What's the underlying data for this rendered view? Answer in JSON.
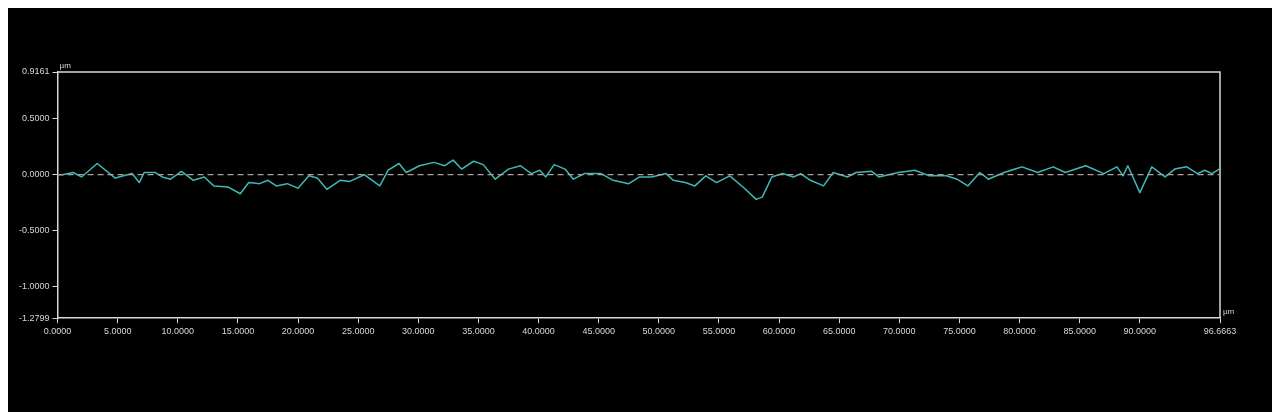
{
  "chart_data": {
    "type": "line",
    "xlabel": "µm",
    "ylabel": "µm",
    "xlim": [
      0,
      96.6663
    ],
    "ylim": [
      -1.2799,
      0.9161
    ],
    "xticks": [
      {
        "value": 0,
        "label": "0.0000"
      },
      {
        "value": 5,
        "label": "5.0000"
      },
      {
        "value": 10,
        "label": "10.0000"
      },
      {
        "value": 15,
        "label": "15.0000"
      },
      {
        "value": 20,
        "label": "20.0000"
      },
      {
        "value": 25,
        "label": "25.0000"
      },
      {
        "value": 30,
        "label": "30.0000"
      },
      {
        "value": 35,
        "label": "35.0000"
      },
      {
        "value": 40,
        "label": "40.0000"
      },
      {
        "value": 45,
        "label": "45.0000"
      },
      {
        "value": 50,
        "label": "50.0000"
      },
      {
        "value": 55,
        "label": "55.0000"
      },
      {
        "value": 60,
        "label": "60.0000"
      },
      {
        "value": 65,
        "label": "65.0000"
      },
      {
        "value": 70,
        "label": "70.0000"
      },
      {
        "value": 75,
        "label": "75.0000"
      },
      {
        "value": 80,
        "label": "80.0000"
      },
      {
        "value": 85,
        "label": "85.0000"
      },
      {
        "value": 90,
        "label": "90.0000"
      },
      {
        "value": 96.6663,
        "label": "96.6663"
      }
    ],
    "yticks": [
      {
        "value": -1.2799,
        "label": "-1.2799"
      },
      {
        "value": -1,
        "label": "-1.0000"
      },
      {
        "value": -0.5,
        "label": "-0.5000"
      },
      {
        "value": 0,
        "label": "0.0000"
      },
      {
        "value": 0.5,
        "label": "0.5000"
      },
      {
        "value": 0.9161,
        "label": "0.9161"
      }
    ],
    "grid": false,
    "legend": false,
    "marker": "none",
    "line_style": "solid",
    "ref_lines": [
      {
        "axis": "y",
        "value": 0,
        "label": null,
        "color": "#a8a0a0",
        "line_style": "dashed"
      }
    ],
    "x": [
      0,
      0.4,
      1.3,
      2.0,
      3.3,
      4.8,
      6.2,
      6.8,
      7.2,
      8.1,
      8.7,
      9.4,
      10.3,
      11.3,
      12.2,
      13.0,
      14.2,
      15.2,
      15.9,
      16.8,
      17.5,
      18.2,
      19.1,
      20.0,
      20.9,
      21.6,
      22.4,
      23.5,
      24.3,
      25.5,
      26.8,
      27.5,
      28.4,
      29.0,
      30.1,
      31.3,
      32.2,
      32.9,
      33.6,
      34.6,
      35.4,
      36.4,
      37.5,
      38.5,
      39.4,
      40.1,
      40.6,
      41.3,
      42.2,
      42.9,
      43.8,
      45.2,
      46.2,
      47.5,
      48.4,
      49.4,
      50.6,
      51.2,
      52.2,
      53.0,
      53.9,
      54.8,
      55.9,
      57.0,
      58.1,
      58.6,
      59.4,
      60.3,
      61.2,
      61.8,
      62.6,
      63.7,
      64.5,
      65.7,
      66.4,
      67.7,
      68.3,
      69.9,
      71.3,
      72.5,
      73.9,
      74.8,
      75.7,
      76.7,
      77.4,
      78.7,
      80.2,
      81.5,
      82.8,
      83.8,
      85.5,
      87.0,
      88.1,
      88.6,
      89.0,
      90.0,
      91.0,
      92.1,
      92.9,
      93.9,
      94.8,
      95.4,
      96.0,
      96.6
    ],
    "series": [
      {
        "color": "#3fb8b8",
        "values": [
          0,
          0,
          0.02,
          -0.02,
          0.1,
          -0.03,
          0.01,
          -0.07,
          0.02,
          0.02,
          -0.02,
          -0.04,
          0.03,
          -0.05,
          -0.02,
          -0.1,
          -0.11,
          -0.17,
          -0.07,
          -0.08,
          -0.05,
          -0.1,
          -0.08,
          -0.12,
          -0.01,
          -0.03,
          -0.13,
          -0.05,
          -0.06,
          0,
          -0.1,
          0.04,
          0.1,
          0.02,
          0.08,
          0.11,
          0.08,
          0.13,
          0.05,
          0.12,
          0.09,
          -0.04,
          0.05,
          0.08,
          0.01,
          0.04,
          -0.02,
          0.09,
          0.05,
          -0.04,
          0.01,
          0.01,
          -0.05,
          -0.08,
          -0.02,
          -0.02,
          0.01,
          -0.05,
          -0.07,
          -0.1,
          -0.01,
          -0.07,
          -0.01,
          -0.11,
          -0.22,
          -0.2,
          -0.02,
          0.01,
          -0.02,
          0.01,
          -0.05,
          -0.1,
          0.02,
          -0.02,
          0.02,
          0.03,
          -0.02,
          0.02,
          0.04,
          -0.01,
          -0.01,
          -0.04,
          -0.1,
          0.02,
          -0.04,
          0.02,
          0.07,
          0.02,
          0.07,
          0.02,
          0.08,
          0.01,
          0.07,
          -0.01,
          0.08,
          -0.16,
          0.07,
          -0.02,
          0.05,
          0.07,
          0.01,
          0.04,
          0.01,
          0.05
        ]
      }
    ]
  }
}
